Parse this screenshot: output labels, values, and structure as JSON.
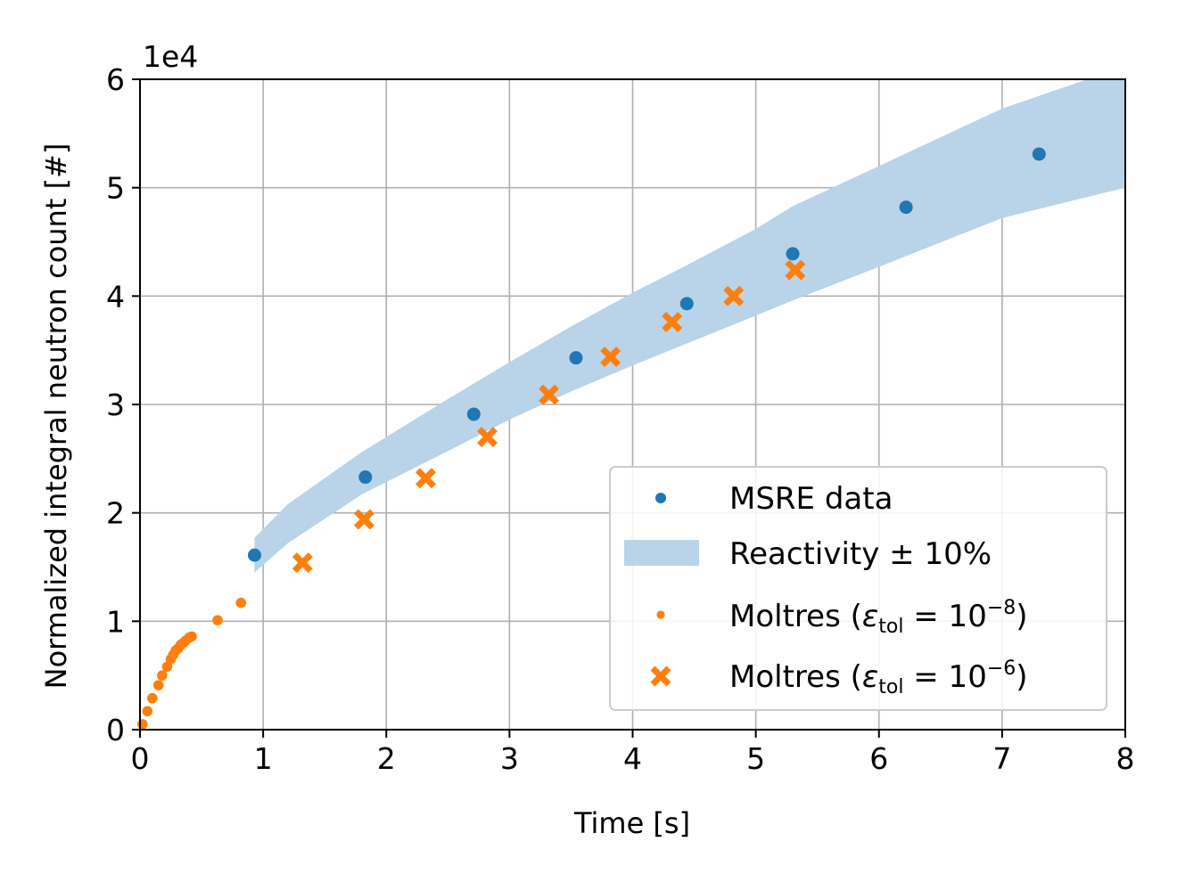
{
  "chart_data": {
    "type": "scatter",
    "xlabel": "Time [s]",
    "ylabel": "Normalized integral neutron count [#]",
    "y_offset_label": "1e4",
    "xlim": [
      0,
      8
    ],
    "ylim": [
      0,
      60000
    ],
    "x_ticks": [
      "0",
      "1",
      "2",
      "3",
      "4",
      "5",
      "6",
      "7",
      "8"
    ],
    "y_ticks": [
      "0",
      "1",
      "2",
      "3",
      "4",
      "5",
      "6"
    ],
    "grid": true,
    "legend_position": "lower-right",
    "colors": {
      "blue": "#1f77b4",
      "orange": "#ff7f0e",
      "band": "#b9d4e8"
    },
    "series": [
      {
        "name": "MSRE data",
        "marker": "dot",
        "color": "#1f77b4",
        "points": [
          [
            0.93,
            16100
          ],
          [
            1.83,
            23300
          ],
          [
            2.71,
            29100
          ],
          [
            3.54,
            34300
          ],
          [
            4.44,
            39300
          ],
          [
            5.3,
            43900
          ],
          [
            6.22,
            48200
          ],
          [
            7.3,
            53100
          ]
        ]
      },
      {
        "name": "Reactivity ± 10%",
        "marker": "band",
        "color": "#b9d4e8",
        "x": [
          0.93,
          1.2,
          1.8,
          2.5,
          3.0,
          3.5,
          4.0,
          4.5,
          5.0,
          5.3,
          6.0,
          7.0,
          8.0
        ],
        "upper": [
          17700,
          20800,
          25600,
          30500,
          33900,
          37200,
          40300,
          43200,
          46200,
          48300,
          52000,
          57300,
          61200
        ],
        "lower": [
          14500,
          17200,
          21700,
          25700,
          28600,
          31200,
          33600,
          35900,
          38200,
          39600,
          42700,
          47200,
          50000
        ]
      },
      {
        "name_prefix": "Moltres (",
        "name_eps": "ε",
        "name_sub": "tol",
        "name_mid": " = 10",
        "name_sup": "−8",
        "name_suffix": ")",
        "marker": "small-dot",
        "color": "#ff7f0e",
        "points": [
          [
            0.02,
            500
          ],
          [
            0.06,
            1700
          ],
          [
            0.1,
            2900
          ],
          [
            0.15,
            4100
          ],
          [
            0.18,
            5000
          ],
          [
            0.22,
            5800
          ],
          [
            0.25,
            6500
          ],
          [
            0.27,
            6900
          ],
          [
            0.29,
            7300
          ],
          [
            0.31,
            7500
          ],
          [
            0.33,
            7800
          ],
          [
            0.35,
            8000
          ],
          [
            0.37,
            8200
          ],
          [
            0.4,
            8500
          ],
          [
            0.42,
            8600
          ],
          [
            0.63,
            10100
          ],
          [
            0.82,
            11700
          ]
        ]
      },
      {
        "name_prefix": "Moltres (",
        "name_eps": "ε",
        "name_sub": "tol",
        "name_mid": " = 10",
        "name_sup": "−6",
        "name_suffix": ")",
        "marker": "x",
        "color": "#ff7f0e",
        "points": [
          [
            1.32,
            15400
          ],
          [
            1.82,
            19400
          ],
          [
            2.32,
            23200
          ],
          [
            2.82,
            27000
          ],
          [
            3.32,
            30900
          ],
          [
            3.82,
            34400
          ],
          [
            4.32,
            37600
          ],
          [
            4.82,
            40000
          ],
          [
            5.32,
            42400
          ]
        ]
      }
    ]
  }
}
